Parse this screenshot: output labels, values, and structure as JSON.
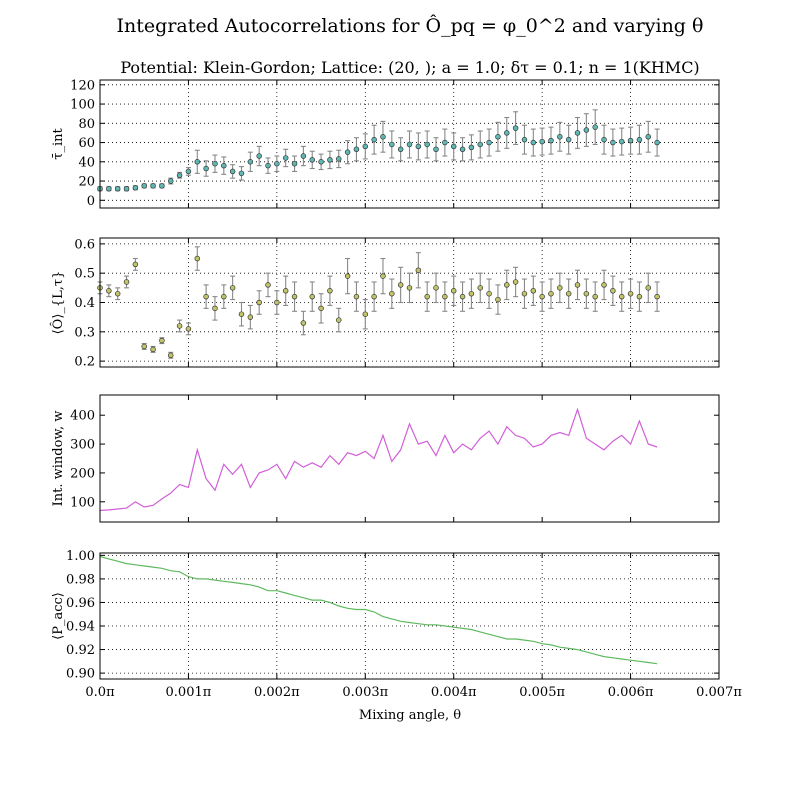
{
  "figure": {
    "title": "Integrated Autocorrelations for Ô_pq = φ_0^2 and varying θ",
    "subtitle": "Potential: Klein-Gordon; Lattice: (20, ); a = 1.0; δτ = 0.1; n = 1(KHMC)",
    "xlabel": "Mixing angle, θ",
    "x_ticks": [
      "0.0π",
      "0.001π",
      "0.002π",
      "0.003π",
      "0.004π",
      "0.005π",
      "0.006π",
      "0.007π"
    ]
  },
  "chart_data": [
    {
      "type": "scatter",
      "ylabel": "τ̄_int",
      "ylim": [
        -8,
        125
      ],
      "yticks": [
        "0",
        "20",
        "40",
        "60",
        "80",
        "100",
        "120"
      ],
      "xlim": [
        0,
        0.007
      ],
      "grid": true,
      "marker_color": "#5fb8b4",
      "series": [
        {
          "x": [
            0.0,
            0.0001,
            0.0002,
            0.0003,
            0.0004,
            0.0005,
            0.0006,
            0.0007,
            0.0008,
            0.0009,
            0.001,
            0.0011,
            0.0012,
            0.0013,
            0.0014,
            0.0015,
            0.0016,
            0.0017,
            0.0018,
            0.0019,
            0.002,
            0.0021,
            0.0022,
            0.0023,
            0.0024,
            0.0025,
            0.0026,
            0.0027,
            0.0028,
            0.0029,
            0.003,
            0.0031,
            0.0032,
            0.0033,
            0.0034,
            0.0035,
            0.0036,
            0.0037,
            0.0038,
            0.0039,
            0.004,
            0.0041,
            0.0042,
            0.0043,
            0.0044,
            0.0045,
            0.0046,
            0.0047,
            0.0048,
            0.0049,
            0.005,
            0.0051,
            0.0052,
            0.0053,
            0.0054,
            0.0055,
            0.0056,
            0.0057,
            0.0058,
            0.0059,
            0.006,
            0.0061,
            0.0062,
            0.0063
          ],
          "y": [
            12,
            12,
            12,
            12,
            13,
            15,
            15,
            15,
            20,
            26,
            30,
            40,
            33,
            38,
            36,
            30,
            28,
            40,
            46,
            36,
            38,
            44,
            38,
            46,
            42,
            40,
            42,
            43,
            50,
            53,
            56,
            63,
            66,
            58,
            53,
            58,
            56,
            58,
            53,
            60,
            56,
            53,
            55,
            58,
            60,
            66,
            70,
            75,
            63,
            60,
            61,
            62,
            66,
            63,
            70,
            73,
            76,
            63,
            60,
            61,
            62,
            63,
            66,
            60
          ],
          "err": [
            2,
            2,
            2,
            2,
            2,
            2,
            2,
            2,
            3,
            3,
            4,
            12,
            8,
            9,
            9,
            7,
            7,
            10,
            10,
            8,
            8,
            9,
            8,
            10,
            9,
            8,
            9,
            9,
            12,
            12,
            13,
            15,
            16,
            14,
            12,
            14,
            14,
            14,
            12,
            14,
            14,
            12,
            13,
            14,
            14,
            15,
            16,
            17,
            15,
            14,
            14,
            14,
            15,
            15,
            16,
            17,
            18,
            15,
            14,
            14,
            14,
            15,
            16,
            14
          ]
        }
      ]
    },
    {
      "type": "scatter",
      "ylabel": "⟨Ô⟩_{L,τ}",
      "ylim": [
        0.18,
        0.62
      ],
      "yticks": [
        "0.2",
        "0.3",
        "0.4",
        "0.5",
        "0.6"
      ],
      "xlim": [
        0,
        0.007
      ],
      "grid": true,
      "marker_color": "#c2c46a",
      "series": [
        {
          "x": [
            0.0,
            0.0001,
            0.0002,
            0.0003,
            0.0004,
            0.0005,
            0.0006,
            0.0007,
            0.0008,
            0.0009,
            0.001,
            0.0011,
            0.0012,
            0.0013,
            0.0014,
            0.0015,
            0.0016,
            0.0017,
            0.0018,
            0.0019,
            0.002,
            0.0021,
            0.0022,
            0.0023,
            0.0024,
            0.0025,
            0.0026,
            0.0027,
            0.0028,
            0.0029,
            0.003,
            0.0031,
            0.0032,
            0.0033,
            0.0034,
            0.0035,
            0.0036,
            0.0037,
            0.0038,
            0.0039,
            0.004,
            0.0041,
            0.0042,
            0.0043,
            0.0044,
            0.0045,
            0.0046,
            0.0047,
            0.0048,
            0.0049,
            0.005,
            0.0051,
            0.0052,
            0.0053,
            0.0054,
            0.0055,
            0.0056,
            0.0057,
            0.0058,
            0.0059,
            0.006,
            0.0061,
            0.0062,
            0.0063
          ],
          "y": [
            0.45,
            0.44,
            0.43,
            0.47,
            0.53,
            0.25,
            0.24,
            0.27,
            0.22,
            0.32,
            0.31,
            0.55,
            0.42,
            0.38,
            0.42,
            0.45,
            0.36,
            0.35,
            0.4,
            0.46,
            0.4,
            0.44,
            0.42,
            0.33,
            0.42,
            0.38,
            0.44,
            0.34,
            0.49,
            0.42,
            0.36,
            0.42,
            0.49,
            0.43,
            0.46,
            0.45,
            0.51,
            0.42,
            0.45,
            0.42,
            0.44,
            0.42,
            0.43,
            0.45,
            0.43,
            0.41,
            0.46,
            0.47,
            0.43,
            0.44,
            0.42,
            0.43,
            0.45,
            0.43,
            0.46,
            0.43,
            0.42,
            0.46,
            0.44,
            0.42,
            0.43,
            0.42,
            0.45,
            0.42
          ],
          "err": [
            0.02,
            0.02,
            0.02,
            0.02,
            0.02,
            0.01,
            0.01,
            0.01,
            0.01,
            0.02,
            0.02,
            0.04,
            0.04,
            0.04,
            0.04,
            0.04,
            0.04,
            0.04,
            0.04,
            0.04,
            0.04,
            0.05,
            0.05,
            0.04,
            0.05,
            0.05,
            0.05,
            0.04,
            0.06,
            0.05,
            0.05,
            0.05,
            0.06,
            0.05,
            0.06,
            0.05,
            0.06,
            0.05,
            0.05,
            0.05,
            0.05,
            0.05,
            0.05,
            0.05,
            0.05,
            0.05,
            0.05,
            0.05,
            0.05,
            0.05,
            0.05,
            0.05,
            0.05,
            0.05,
            0.05,
            0.05,
            0.05,
            0.05,
            0.05,
            0.05,
            0.05,
            0.05,
            0.05,
            0.05
          ]
        }
      ]
    },
    {
      "type": "line",
      "ylabel": "Int. window, w",
      "ylim": [
        30,
        470
      ],
      "yticks": [
        "100",
        "200",
        "300",
        "400"
      ],
      "xlim": [
        0,
        0.007
      ],
      "grid": false,
      "line_color": "#d15fd8",
      "series": [
        {
          "x": [
            0.0,
            0.0001,
            0.0002,
            0.0003,
            0.0004,
            0.0005,
            0.0006,
            0.0007,
            0.0008,
            0.0009,
            0.001,
            0.0011,
            0.0012,
            0.0013,
            0.0014,
            0.0015,
            0.0016,
            0.0017,
            0.0018,
            0.0019,
            0.002,
            0.0021,
            0.0022,
            0.0023,
            0.0024,
            0.0025,
            0.0026,
            0.0027,
            0.0028,
            0.0029,
            0.003,
            0.0031,
            0.0032,
            0.0033,
            0.0034,
            0.0035,
            0.0036,
            0.0037,
            0.0038,
            0.0039,
            0.004,
            0.0041,
            0.0042,
            0.0043,
            0.0044,
            0.0045,
            0.0046,
            0.0047,
            0.0048,
            0.0049,
            0.005,
            0.0051,
            0.0052,
            0.0053,
            0.0054,
            0.0055,
            0.0056,
            0.0057,
            0.0058,
            0.0059,
            0.006,
            0.0061,
            0.0062,
            0.0063
          ],
          "y": [
            70,
            72,
            75,
            78,
            100,
            82,
            88,
            110,
            130,
            160,
            150,
            280,
            180,
            140,
            230,
            195,
            230,
            150,
            200,
            210,
            230,
            180,
            240,
            220,
            235,
            220,
            260,
            230,
            270,
            260,
            275,
            250,
            330,
            240,
            280,
            370,
            300,
            310,
            260,
            330,
            270,
            300,
            280,
            320,
            345,
            300,
            360,
            330,
            320,
            290,
            300,
            330,
            340,
            330,
            420,
            320,
            300,
            280,
            310,
            330,
            300,
            380,
            300,
            290
          ]
        }
      ]
    },
    {
      "type": "line",
      "ylabel": "⟨P_acc⟩",
      "ylim": [
        0.895,
        1.002
      ],
      "yticks": [
        "0.90",
        "0.92",
        "0.94",
        "0.96",
        "0.98",
        "1.00"
      ],
      "xlim": [
        0,
        0.007
      ],
      "grid": true,
      "line_color": "#5fb95f",
      "series": [
        {
          "x": [
            0.0,
            0.0001,
            0.0002,
            0.0003,
            0.0004,
            0.0005,
            0.0006,
            0.0007,
            0.0008,
            0.0009,
            0.001,
            0.0011,
            0.0012,
            0.0013,
            0.0014,
            0.0015,
            0.0016,
            0.0017,
            0.0018,
            0.0019,
            0.002,
            0.0021,
            0.0022,
            0.0023,
            0.0024,
            0.0025,
            0.0026,
            0.0027,
            0.0028,
            0.0029,
            0.003,
            0.0031,
            0.0032,
            0.0033,
            0.0034,
            0.0035,
            0.0036,
            0.0037,
            0.0038,
            0.0039,
            0.004,
            0.0041,
            0.0042,
            0.0043,
            0.0044,
            0.0045,
            0.0046,
            0.0047,
            0.0048,
            0.0049,
            0.005,
            0.0051,
            0.0052,
            0.0053,
            0.0054,
            0.0055,
            0.0056,
            0.0057,
            0.0058,
            0.0059,
            0.006,
            0.0061,
            0.0062,
            0.0063
          ],
          "y": [
            0.999,
            0.997,
            0.995,
            0.993,
            0.992,
            0.991,
            0.99,
            0.989,
            0.987,
            0.986,
            0.982,
            0.98,
            0.98,
            0.979,
            0.978,
            0.977,
            0.976,
            0.975,
            0.973,
            0.97,
            0.97,
            0.968,
            0.966,
            0.964,
            0.962,
            0.962,
            0.96,
            0.957,
            0.955,
            0.954,
            0.954,
            0.952,
            0.948,
            0.946,
            0.944,
            0.943,
            0.942,
            0.941,
            0.941,
            0.94,
            0.939,
            0.938,
            0.937,
            0.935,
            0.933,
            0.931,
            0.929,
            0.929,
            0.928,
            0.927,
            0.925,
            0.924,
            0.922,
            0.921,
            0.92,
            0.918,
            0.916,
            0.914,
            0.913,
            0.912,
            0.911,
            0.91,
            0.909,
            0.908
          ]
        }
      ]
    }
  ]
}
